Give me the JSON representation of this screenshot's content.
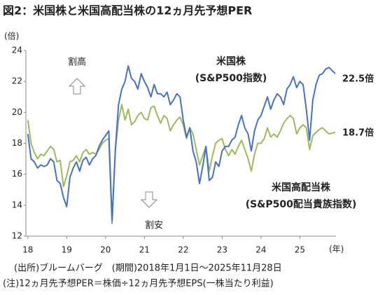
{
  "chart_data": {
    "type": "line",
    "title": "図2：米国株と米国高配当株の12ヵ月先予想PER",
    "ylabel": "(倍)",
    "xlabel": "(年)",
    "xlim": [
      2017.95,
      2025.93
    ],
    "ylim": [
      12,
      24
    ],
    "xticks": [
      {
        "value": 2018,
        "label": "18"
      },
      {
        "value": 2019,
        "label": "19"
      },
      {
        "value": 2020,
        "label": "20"
      },
      {
        "value": 2021,
        "label": "21"
      },
      {
        "value": 2022,
        "label": "22"
      },
      {
        "value": 2023,
        "label": "23"
      },
      {
        "value": 2024,
        "label": "24"
      },
      {
        "value": 2025,
        "label": "25"
      }
    ],
    "yticks": [
      12,
      14,
      16,
      18,
      20,
      22,
      24
    ],
    "x": [
      2018,
      2018.083,
      2018.167,
      2018.25,
      2018.333,
      2018.417,
      2018.5,
      2018.583,
      2018.667,
      2018.75,
      2018.833,
      2018.917,
      2019,
      2019.083,
      2019.167,
      2019.25,
      2019.333,
      2019.417,
      2019.5,
      2019.583,
      2019.667,
      2019.75,
      2019.833,
      2019.917,
      2020,
      2020.083,
      2020.167,
      2020.25,
      2020.333,
      2020.417,
      2020.5,
      2020.583,
      2020.667,
      2020.75,
      2020.833,
      2020.917,
      2021,
      2021.083,
      2021.167,
      2021.25,
      2021.333,
      2021.417,
      2021.5,
      2021.583,
      2021.667,
      2021.75,
      2021.833,
      2021.917,
      2022,
      2022.083,
      2022.167,
      2022.25,
      2022.333,
      2022.417,
      2022.5,
      2022.583,
      2022.667,
      2022.75,
      2022.833,
      2022.917,
      2023,
      2023.083,
      2023.167,
      2023.25,
      2023.333,
      2023.417,
      2023.5,
      2023.583,
      2023.667,
      2023.75,
      2023.833,
      2023.917,
      2024,
      2024.083,
      2024.167,
      2024.25,
      2024.333,
      2024.417,
      2024.5,
      2024.583,
      2024.667,
      2024.75,
      2024.833,
      2024.917,
      2025,
      2025.083,
      2025.167,
      2025.25,
      2025.333,
      2025.417,
      2025.5,
      2025.583,
      2025.667,
      2025.75,
      2025.91
    ],
    "series": [
      {
        "name": "米国株",
        "sub": "(S&P500指数)",
        "end_label": "22.5倍",
        "color": "#4472c4",
        "values": [
          18.6,
          17.0,
          16.8,
          16.4,
          16.6,
          16.5,
          16.6,
          17.0,
          16.8,
          15.6,
          15.4,
          14.5,
          13.9,
          15.8,
          16.4,
          16.8,
          16.2,
          16.9,
          17.1,
          16.6,
          17.0,
          17.2,
          17.8,
          18.2,
          18.5,
          18.8,
          13.0,
          17.5,
          20.5,
          21.5,
          22.0,
          23.0,
          22.2,
          22.0,
          21.5,
          22.5,
          22.0,
          21.6,
          21.0,
          21.8,
          21.2,
          21.2,
          21.0,
          21.3,
          20.5,
          20.8,
          21.2,
          21.0,
          19.5,
          18.4,
          19.0,
          17.5,
          16.8,
          15.4,
          16.5,
          17.8,
          15.6,
          15.8,
          16.8,
          16.5,
          17.5,
          17.8,
          17.8,
          18.2,
          18.4,
          19.2,
          19.8,
          19.0,
          18.6,
          17.5,
          18.8,
          19.5,
          19.8,
          20.4,
          21.0,
          20.2,
          20.8,
          21.2,
          21.0,
          20.5,
          21.5,
          21.8,
          22.3,
          21.6,
          22.0,
          21.8,
          20.2,
          18.2,
          20.8,
          21.8,
          22.4,
          22.5,
          22.8,
          22.9,
          22.5
        ]
      },
      {
        "name": "米国高配当株",
        "sub": "(S&P500配当貴族指数)",
        "end_label": "18.7倍",
        "color": "#9bbb59",
        "values": [
          19.5,
          18.0,
          17.4,
          17.0,
          17.3,
          17.2,
          17.5,
          17.8,
          17.6,
          16.8,
          16.9,
          15.2,
          15.9,
          16.8,
          16.9,
          17.2,
          16.8,
          17.4,
          17.6,
          17.3,
          17.4,
          17.3,
          17.6,
          18.0,
          18.2,
          18.3,
          12.8,
          17.5,
          19.5,
          20.5,
          19.5,
          20.2,
          19.2,
          19.4,
          19.8,
          20.0,
          19.6,
          19.5,
          20.3,
          20.4,
          19.8,
          19.3,
          19.8,
          19.6,
          18.8,
          19.2,
          19.5,
          19.7,
          19.2,
          18.3,
          19.0,
          18.6,
          17.6,
          16.6,
          17.2,
          17.8,
          16.2,
          17.2,
          18.0,
          18.2,
          18.3,
          17.6,
          17.2,
          17.6,
          17.3,
          17.8,
          18.2,
          17.6,
          17.0,
          16.2,
          17.3,
          18.0,
          18.0,
          18.3,
          19.0,
          18.4,
          18.6,
          18.4,
          18.8,
          19.3,
          19.6,
          19.8,
          19.6,
          18.6,
          19.0,
          19.2,
          19.0,
          17.6,
          18.5,
          18.7,
          18.9,
          19.0,
          18.8,
          18.6,
          18.7
        ]
      }
    ],
    "annotations": {
      "high": "割高",
      "low": "割安"
    },
    "notes": [
      "(出所)ブルームバーグ　(期間)2018年1月1日～2025年11月28日",
      "(注)12ヵ月先予想PER＝株価÷12ヵ月先予想EPS(一株当たり利益)"
    ]
  }
}
